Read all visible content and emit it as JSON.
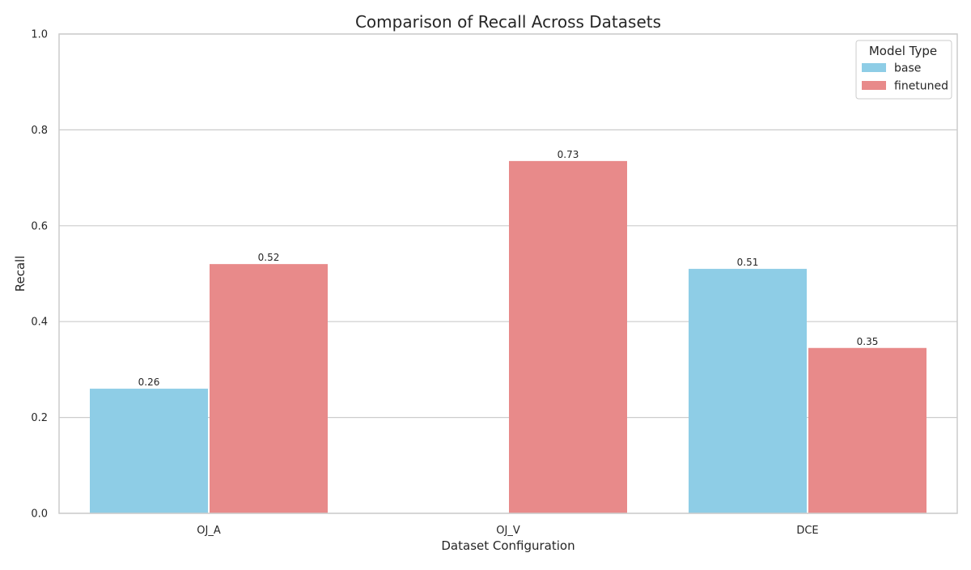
{
  "chart_data": {
    "type": "bar",
    "title": "Comparison of Recall Across Datasets",
    "xlabel": "Dataset Configuration",
    "ylabel": "Recall",
    "categories": [
      "OJ_A",
      "OJ_V",
      "DCE"
    ],
    "series": [
      {
        "name": "base",
        "color": "#8ecde6",
        "values": [
          0.26,
          null,
          0.51
        ],
        "labels": [
          "0.26",
          null,
          "0.51"
        ]
      },
      {
        "name": "finetuned",
        "color": "#e88a8a",
        "values": [
          0.52,
          0.735,
          0.345
        ],
        "labels": [
          "0.52",
          "0.73",
          "0.35"
        ]
      }
    ],
    "ylim": [
      0,
      1.0
    ],
    "yticks": [
      "0.0",
      "0.2",
      "0.4",
      "0.6",
      "0.8",
      "1.0"
    ],
    "grid": "y",
    "legend": {
      "title": "Model Type",
      "placement": "top-right"
    }
  }
}
